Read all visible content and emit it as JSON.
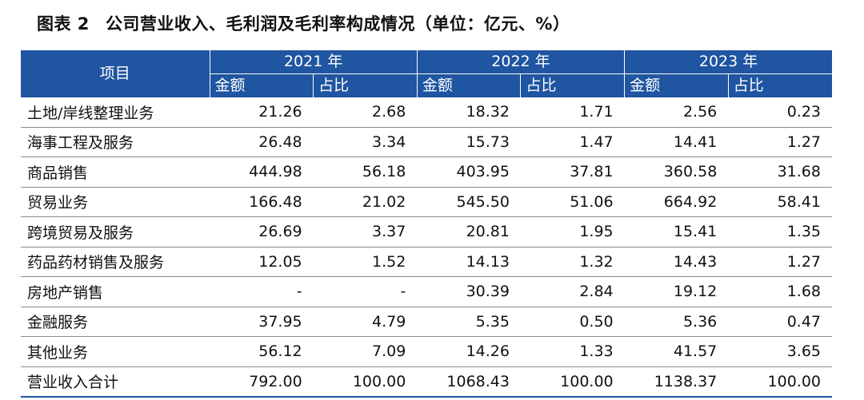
{
  "title": {
    "label": "图表 2",
    "text": "公司营业收入、毛利润及毛利率构成情况（单位：亿元、%）"
  },
  "table": {
    "item_header": "项目",
    "years": [
      "2021 年",
      "2022 年",
      "2023 年"
    ],
    "sub_headers": [
      "金额",
      "占比",
      "金额",
      "占比",
      "金额",
      "占比"
    ],
    "rows": [
      {
        "name": "土地/岸线整理业务",
        "values": [
          "21.26",
          "2.68",
          "18.32",
          "1.71",
          "2.56",
          "0.23"
        ]
      },
      {
        "name": "海事工程及服务",
        "values": [
          "26.48",
          "3.34",
          "15.73",
          "1.47",
          "14.41",
          "1.27"
        ]
      },
      {
        "name": "商品销售",
        "values": [
          "444.98",
          "56.18",
          "403.95",
          "37.81",
          "360.58",
          "31.68"
        ]
      },
      {
        "name": "贸易业务",
        "values": [
          "166.48",
          "21.02",
          "545.50",
          "51.06",
          "664.92",
          "58.41"
        ]
      },
      {
        "name": "跨境贸易及服务",
        "values": [
          "26.69",
          "3.37",
          "20.81",
          "1.95",
          "15.41",
          "1.35"
        ]
      },
      {
        "name": "药品药材销售及服务",
        "values": [
          "12.05",
          "1.52",
          "14.13",
          "1.32",
          "14.43",
          "1.27"
        ]
      },
      {
        "name": "房地产销售",
        "values": [
          "-",
          "-",
          "30.39",
          "2.84",
          "19.12",
          "1.68"
        ]
      },
      {
        "name": "金融服务",
        "values": [
          "37.95",
          "4.79",
          "5.35",
          "0.50",
          "5.36",
          "0.47"
        ]
      },
      {
        "name": "其他业务",
        "values": [
          "56.12",
          "7.09",
          "14.26",
          "1.33",
          "41.57",
          "3.65"
        ]
      },
      {
        "name": "营业收入合计",
        "values": [
          "792.00",
          "100.00",
          "1068.43",
          "100.00",
          "1138.37",
          "100.00"
        ]
      }
    ]
  }
}
